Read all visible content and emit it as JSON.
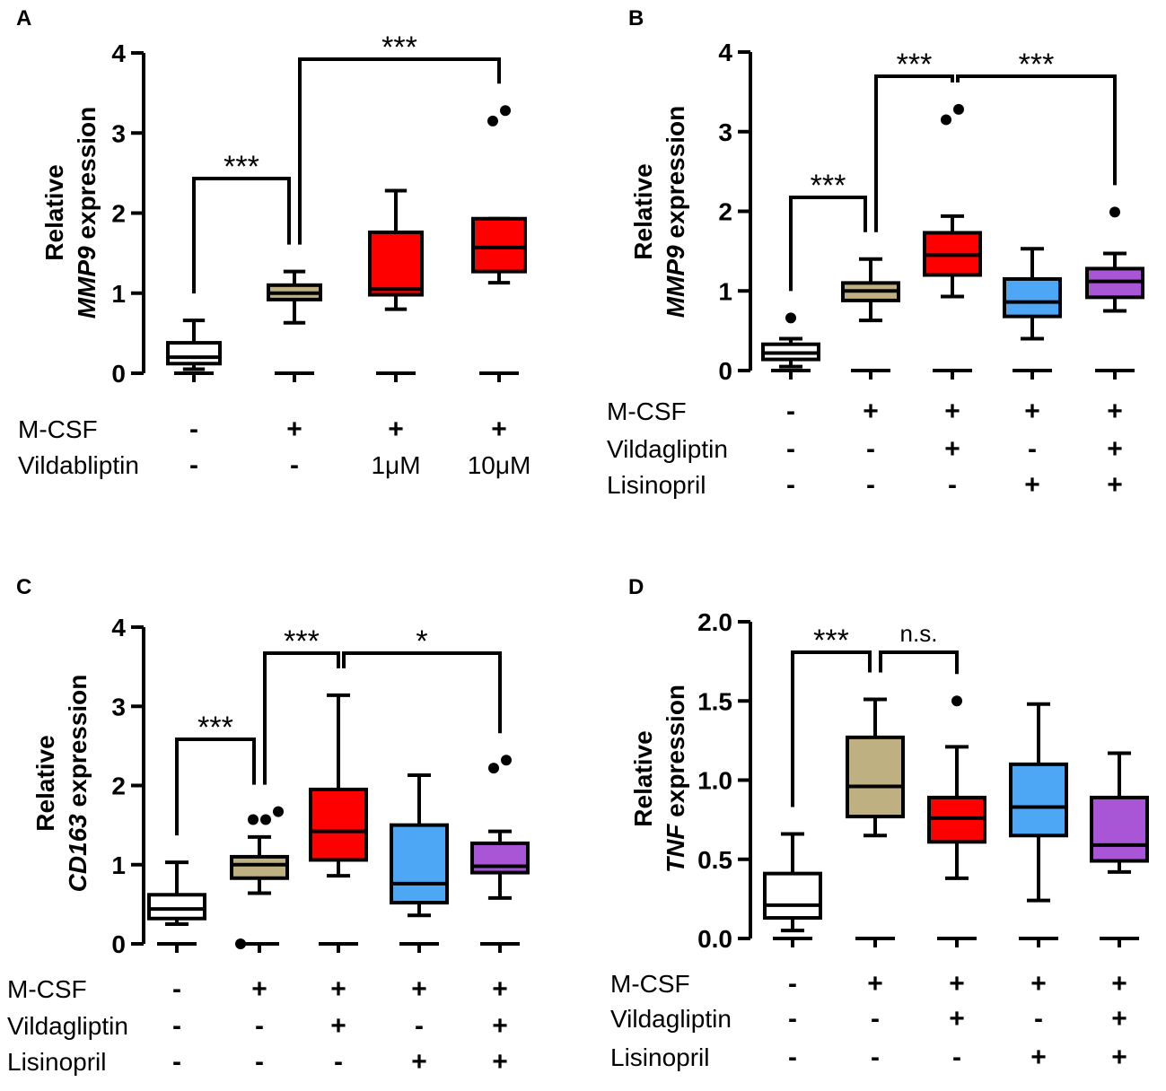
{
  "chart_data": [
    {
      "panel": "A",
      "type": "box",
      "ylabel_line1": "Relative",
      "ylabel_gene": "MMP9",
      "ylabel_suffix": " expression",
      "ylim": [
        0,
        4
      ],
      "yticks": [
        "0",
        "1",
        "2",
        "3",
        "4"
      ],
      "ytick_values": [
        0,
        1,
        2,
        3,
        4
      ],
      "boxes": [
        {
          "color": "#ffffff",
          "whisker_low": 0.05,
          "q1": 0.12,
          "median": 0.2,
          "q3": 0.38,
          "whisker_high": 0.66,
          "outliers": []
        },
        {
          "color": "#bfb081",
          "whisker_low": 0.63,
          "q1": 0.92,
          "median": 1.0,
          "q3": 1.1,
          "whisker_high": 1.27,
          "outliers": []
        },
        {
          "color": "#ff0000",
          "whisker_low": 0.8,
          "q1": 0.98,
          "median": 1.05,
          "q3": 1.76,
          "whisker_high": 2.28,
          "outliers": []
        },
        {
          "color": "#ff0000",
          "whisker_low": 1.13,
          "q1": 1.27,
          "median": 1.57,
          "q3": 1.93,
          "whisker_high": 1.93,
          "outliers": [
            3.15,
            3.28
          ]
        }
      ],
      "brackets": [
        {
          "from": 0,
          "to": 1,
          "label": "***"
        },
        {
          "from": 1,
          "to": 3,
          "label": "***"
        }
      ],
      "conditions": [
        {
          "name": "M-CSF",
          "values": [
            "-",
            "+",
            "+",
            "+"
          ]
        },
        {
          "name": "Vildabliptin",
          "values": [
            "-",
            "-",
            "1μM",
            "10μM"
          ]
        }
      ]
    },
    {
      "panel": "B",
      "type": "box",
      "ylabel_line1": "Relative",
      "ylabel_gene": "MMP9",
      "ylabel_suffix": " expression",
      "ylim": [
        0,
        4
      ],
      "yticks": [
        "0",
        "1",
        "2",
        "3",
        "4"
      ],
      "ytick_values": [
        0,
        1,
        2,
        3,
        4
      ],
      "boxes": [
        {
          "color": "#ffffff",
          "whisker_low": 0.05,
          "q1": 0.14,
          "median": 0.22,
          "q3": 0.33,
          "whisker_high": 0.4,
          "outliers": [
            0.66
          ]
        },
        {
          "color": "#bfb081",
          "whisker_low": 0.63,
          "q1": 0.88,
          "median": 1.0,
          "q3": 1.1,
          "whisker_high": 1.4,
          "outliers": []
        },
        {
          "color": "#ff0000",
          "whisker_low": 0.93,
          "q1": 1.2,
          "median": 1.45,
          "q3": 1.73,
          "whisker_high": 1.94,
          "outliers": [
            3.15,
            3.28
          ]
        },
        {
          "color": "#4ea7f5",
          "whisker_low": 0.4,
          "q1": 0.68,
          "median": 0.86,
          "q3": 1.15,
          "whisker_high": 1.53,
          "outliers": []
        },
        {
          "color": "#a855d6",
          "whisker_low": 0.75,
          "q1": 0.92,
          "median": 1.12,
          "q3": 1.28,
          "whisker_high": 1.47,
          "outliers": [
            1.99
          ]
        }
      ],
      "brackets": [
        {
          "from": 0,
          "to": 1,
          "label": "***"
        },
        {
          "from": 1,
          "to": 2,
          "label": "***"
        },
        {
          "from": 2,
          "to": 4,
          "label": "***"
        }
      ],
      "conditions": [
        {
          "name": "M-CSF",
          "values": [
            "-",
            "+",
            "+",
            "+",
            "+"
          ]
        },
        {
          "name": "Vildagliptin",
          "values": [
            "-",
            "-",
            "+",
            "-",
            "+"
          ]
        },
        {
          "name": "Lisinopril",
          "values": [
            "-",
            "-",
            "-",
            "+",
            "+"
          ]
        }
      ]
    },
    {
      "panel": "C",
      "type": "box",
      "ylabel_line1": "Relative",
      "ylabel_gene": "CD163",
      "ylabel_suffix": " expression",
      "ylim": [
        0,
        4
      ],
      "yticks": [
        "0",
        "1",
        "2",
        "3",
        "4"
      ],
      "ytick_values": [
        0,
        1,
        2,
        3,
        4
      ],
      "boxes": [
        {
          "color": "#ffffff",
          "whisker_low": 0.25,
          "q1": 0.32,
          "median": 0.44,
          "q3": 0.62,
          "whisker_high": 1.03,
          "outliers": []
        },
        {
          "color": "#bfb081",
          "whisker_low": 0.64,
          "q1": 0.83,
          "median": 1.0,
          "q3": 1.1,
          "whisker_high": 1.35,
          "outliers": [
            0.0,
            1.57,
            1.57,
            1.67
          ]
        },
        {
          "color": "#ff0000",
          "whisker_low": 0.86,
          "q1": 1.06,
          "median": 1.42,
          "q3": 1.95,
          "whisker_high": 3.14,
          "outliers": []
        },
        {
          "color": "#4ea7f5",
          "whisker_low": 0.36,
          "q1": 0.52,
          "median": 0.76,
          "q3": 1.5,
          "whisker_high": 2.13,
          "outliers": []
        },
        {
          "color": "#a855d6",
          "whisker_low": 0.58,
          "q1": 0.9,
          "median": 0.98,
          "q3": 1.27,
          "whisker_high": 1.42,
          "outliers": [
            2.22,
            2.32
          ]
        }
      ],
      "brackets": [
        {
          "from": 0,
          "to": 1,
          "label": "***"
        },
        {
          "from": 1,
          "to": 2,
          "label": "***"
        },
        {
          "from": 2,
          "to": 4,
          "label": "*"
        }
      ],
      "conditions": [
        {
          "name": "M-CSF",
          "values": [
            "-",
            "+",
            "+",
            "+",
            "+"
          ]
        },
        {
          "name": "Vildagliptin",
          "values": [
            "-",
            "-",
            "+",
            "-",
            "+"
          ]
        },
        {
          "name": "Lisinopril",
          "values": [
            "-",
            "-",
            "-",
            "+",
            "+"
          ]
        }
      ]
    },
    {
      "panel": "D",
      "type": "box",
      "ylabel_line1": "Relative",
      "ylabel_gene": "TNF",
      "ylabel_suffix": " expression",
      "ylim": [
        0,
        2.0
      ],
      "yticks": [
        "0.0",
        "0.5",
        "1.0",
        "1.5",
        "2.0"
      ],
      "ytick_values": [
        0,
        0.5,
        1.0,
        1.5,
        2.0
      ],
      "boxes": [
        {
          "color": "#ffffff",
          "whisker_low": 0.05,
          "q1": 0.13,
          "median": 0.21,
          "q3": 0.41,
          "whisker_high": 0.66,
          "outliers": []
        },
        {
          "color": "#bfb081",
          "whisker_low": 0.65,
          "q1": 0.77,
          "median": 0.96,
          "q3": 1.27,
          "whisker_high": 1.51,
          "outliers": []
        },
        {
          "color": "#ff0000",
          "whisker_low": 0.38,
          "q1": 0.61,
          "median": 0.76,
          "q3": 0.89,
          "whisker_high": 1.21,
          "outliers": [
            1.5
          ]
        },
        {
          "color": "#4ea7f5",
          "whisker_low": 0.24,
          "q1": 0.65,
          "median": 0.83,
          "q3": 1.1,
          "whisker_high": 1.48,
          "outliers": []
        },
        {
          "color": "#a855d6",
          "whisker_low": 0.42,
          "q1": 0.49,
          "median": 0.59,
          "q3": 0.89,
          "whisker_high": 1.17,
          "outliers": []
        }
      ],
      "brackets": [
        {
          "from": 0,
          "to": 1,
          "label": "***"
        },
        {
          "from": 1,
          "to": 2,
          "label": "n.s."
        }
      ],
      "conditions": [
        {
          "name": "M-CSF",
          "values": [
            "-",
            "+",
            "+",
            "+",
            "+"
          ]
        },
        {
          "name": "Vildagliptin",
          "values": [
            "-",
            "-",
            "+",
            "-",
            "+"
          ]
        },
        {
          "name": "Lisinopril",
          "values": [
            "-",
            "-",
            "-",
            "+",
            "+"
          ]
        }
      ]
    }
  ]
}
